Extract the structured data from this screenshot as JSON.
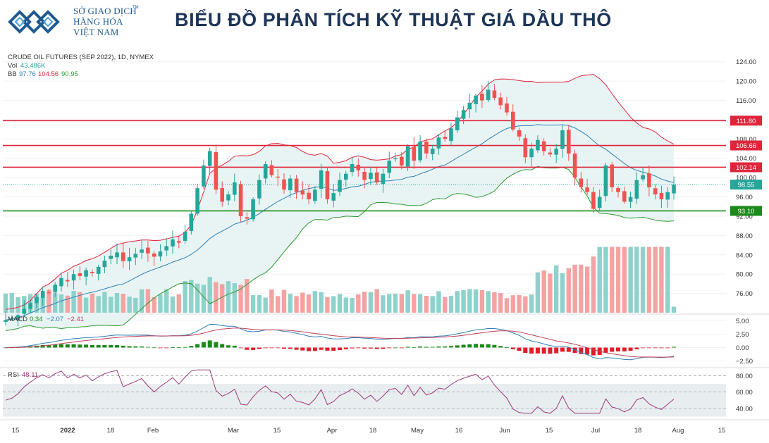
{
  "header": {
    "logo_line1": "SỞ GIAO DỊCH",
    "logo_line2": "HÀNG HÓA",
    "logo_line3": "VIỆT NAM",
    "logo_tm": "TM",
    "title": "BIỂU ĐỒ PHÂN TÍCH KỸ THUẬT GIÁ DẦU THÔ"
  },
  "legend": {
    "symbol": "CRUDE OIL FUTURES (SEP 2022), 1D, NYMEX",
    "vol_label": "Vol",
    "vol_value": "43.486K",
    "bb_label": "BB",
    "bb_mid": "97.76",
    "bb_upper": "104.56",
    "bb_lower": "90.95",
    "macd_label": "MACD",
    "macd_v1": "0.34",
    "macd_v2": "−2.07",
    "macd_v3": "−2.41",
    "rsi_label": "RSI",
    "rsi_value": "48.11"
  },
  "colors": {
    "up": "#26a69a",
    "down": "#ef5350",
    "resistance": "#e0243a",
    "support": "#1a8a1a",
    "bb_upper": "#e0243a",
    "bb_lower": "#2e9a2e",
    "bb_mid": "#2f7fb5",
    "bb_fill": "#e8f4f4",
    "macd_line": "#2f7fb5",
    "signal_line": "#c0405a",
    "rsi_line": "#9c3a7a",
    "rsi_band": "#e8eef0"
  },
  "chart_data": [
    {
      "type": "candlestick",
      "name": "price",
      "ylim": [
        72,
        126
      ],
      "y_ticks": [
        "124.00",
        "120.00",
        "116.00",
        "112.00",
        "108.00",
        "104.00",
        "100.00",
        "96.00",
        "92.00",
        "88.00",
        "84.00",
        "80.00",
        "76.00"
      ],
      "last_price": "98.55",
      "horizontal_levels": [
        {
          "value": 111.8,
          "label": "111.80",
          "kind": "resistance"
        },
        {
          "value": 106.66,
          "label": "106.66",
          "kind": "resistance"
        },
        {
          "value": 102.14,
          "label": "102.14",
          "kind": "resistance"
        },
        {
          "value": 93.1,
          "label": "93.10",
          "kind": "support"
        }
      ],
      "close_series": [
        70.5,
        70.8,
        71.5,
        72.8,
        74.0,
        75.3,
        76.5,
        76.2,
        77.8,
        79.2,
        78.5,
        80.0,
        79.6,
        80.8,
        80.2,
        81.5,
        82.8,
        83.8,
        84.5,
        82.7,
        83.5,
        84.2,
        85.1,
        84.3,
        83.6,
        84.7,
        85.8,
        87.2,
        86.5,
        88.8,
        92.5,
        97.8,
        102.5,
        105.5,
        97.5,
        95.0,
        96.5,
        99.0,
        92.0,
        91.5,
        95.5,
        99.5,
        102.8,
        100.5,
        100.0,
        97.5,
        99.8,
        97.0,
        96.5,
        95.5,
        97.5,
        101.5,
        95.5,
        96.8,
        99.5,
        100.8,
        102.8,
        101.5,
        99.5,
        101.0,
        99.0,
        100.8,
        103.5,
        104.0,
        102.5,
        106.5,
        103.5,
        107.5,
        105.0,
        106.0,
        108.3,
        108.0,
        110.2,
        112.5,
        114.0,
        115.5,
        117.0,
        116.0,
        118.2,
        116.5,
        115.0,
        113.5,
        110.0,
        108.5,
        104.2,
        106.0,
        107.8,
        105.5,
        104.8,
        106.0,
        109.8,
        105.0,
        100.0,
        98.0,
        97.0,
        93.5,
        96.0,
        102.5,
        98.0,
        97.0,
        95.0,
        96.0,
        99.5,
        100.5,
        98.0,
        96.5,
        95.5,
        97.0,
        98.55
      ],
      "volume_note": "relative volume bars shown at bottom of price pane"
    },
    {
      "type": "line",
      "name": "macd",
      "ylim": [
        -3.5,
        6
      ],
      "y_ticks": [
        "5.00",
        "2.50",
        "0.00",
        "−2.50"
      ]
    },
    {
      "type": "line",
      "name": "rsi",
      "ylim": [
        33,
        88
      ],
      "y_ticks": [
        "80.00",
        "60.00",
        "40.00"
      ],
      "band": [
        30,
        70
      ]
    },
    {
      "type": "time_axis",
      "x_ticks": [
        "15",
        "2022",
        "18",
        "Feb",
        "Mar",
        "15",
        "Apr",
        "18",
        "May",
        "16",
        "Jun",
        "15",
        "Jul",
        "18",
        "Aug",
        "15"
      ]
    }
  ]
}
